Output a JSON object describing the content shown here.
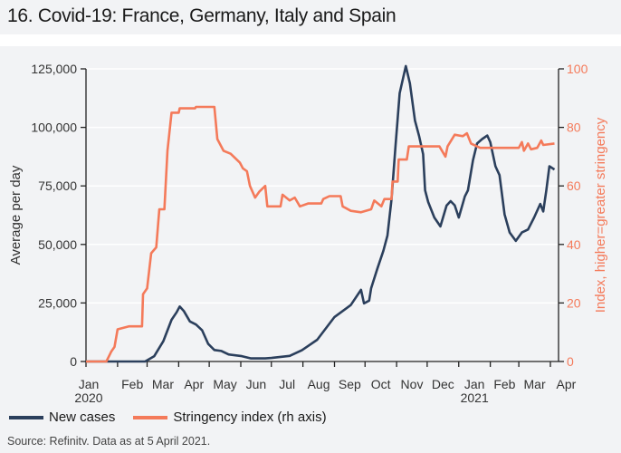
{
  "title": "16. Covid-19: France, Germany, Italy and Spain",
  "source": "Source: Refinitv. Data as at 5 April 2021.",
  "colors": {
    "cases": "#2b3f5c",
    "stringency": "#f47a5a",
    "background": "#f2f3f5",
    "grid": "#ffffff"
  },
  "chart_data": {
    "type": "line",
    "xlim": [
      "2020-01-01",
      "2021-04-09"
    ],
    "x_ticks": [
      {
        "label": "Jan",
        "year": "2020",
        "date": "2020-01-01"
      },
      {
        "label": "Feb",
        "date": "2020-02-01"
      },
      {
        "label": "Mar",
        "date": "2020-03-01"
      },
      {
        "label": "Apr",
        "date": "2020-04-01"
      },
      {
        "label": "May",
        "date": "2020-05-01"
      },
      {
        "label": "Jun",
        "date": "2020-06-01"
      },
      {
        "label": "Jul",
        "date": "2020-07-01"
      },
      {
        "label": "Aug",
        "date": "2020-08-01"
      },
      {
        "label": "Sep",
        "date": "2020-09-01"
      },
      {
        "label": "Oct",
        "date": "2020-10-01"
      },
      {
        "label": "Nov",
        "date": "2020-11-01"
      },
      {
        "label": "Dec",
        "date": "2020-12-01"
      },
      {
        "label": "Jan",
        "year": "2021",
        "date": "2021-01-01"
      },
      {
        "label": "Feb",
        "date": "2021-02-01"
      },
      {
        "label": "Mar",
        "date": "2021-03-01"
      },
      {
        "label": "Apr",
        "date": "2021-04-01"
      }
    ],
    "y_left": {
      "label": "Average per day",
      "ylim": [
        0,
        125000
      ],
      "ticks": [
        "0",
        "25,000",
        "50,000",
        "75,000",
        "100,000",
        "125,000"
      ],
      "tick_values": [
        0,
        25000,
        50000,
        75000,
        100000,
        125000
      ]
    },
    "y_right": {
      "label": "Index, higher=greater stringency",
      "ylim": [
        0,
        100
      ],
      "ticks": [
        "0",
        "20",
        "40",
        "60",
        "80",
        "100"
      ],
      "tick_values": [
        0,
        20,
        40,
        60,
        80,
        100
      ]
    },
    "grid": true,
    "legend_position": "bottom-left",
    "series": [
      {
        "name": "New cases",
        "axis": "left",
        "points": [
          [
            "2020-01-01",
            0
          ],
          [
            "2020-02-28",
            0
          ],
          [
            "2020-03-08",
            2300
          ],
          [
            "2020-03-17",
            8750
          ],
          [
            "2020-03-25",
            17800
          ],
          [
            "2020-03-30",
            21000
          ],
          [
            "2020-04-02",
            23500
          ],
          [
            "2020-04-06",
            21600
          ],
          [
            "2020-04-12",
            17100
          ],
          [
            "2020-04-18",
            15800
          ],
          [
            "2020-04-24",
            13300
          ],
          [
            "2020-04-30",
            7500
          ],
          [
            "2020-05-06",
            4900
          ],
          [
            "2020-05-13",
            4500
          ],
          [
            "2020-05-20",
            3000
          ],
          [
            "2020-06-02",
            2300
          ],
          [
            "2020-06-11",
            1300
          ],
          [
            "2020-06-25",
            1300
          ],
          [
            "2020-07-01",
            1500
          ],
          [
            "2020-07-19",
            2400
          ],
          [
            "2020-07-31",
            4800
          ],
          [
            "2020-08-15",
            9300
          ],
          [
            "2020-09-01",
            19000
          ],
          [
            "2020-09-17",
            24100
          ],
          [
            "2020-09-27",
            30600
          ],
          [
            "2020-09-30",
            24800
          ],
          [
            "2020-10-05",
            26000
          ],
          [
            "2020-10-07",
            31300
          ],
          [
            "2020-10-13",
            39600
          ],
          [
            "2020-10-19",
            47300
          ],
          [
            "2020-10-23",
            53800
          ],
          [
            "2020-10-27",
            69300
          ],
          [
            "2020-10-31",
            92500
          ],
          [
            "2020-11-04",
            114600
          ],
          [
            "2020-11-10",
            126200
          ],
          [
            "2020-11-14",
            118800
          ],
          [
            "2020-11-19",
            102900
          ],
          [
            "2020-11-23",
            96400
          ],
          [
            "2020-11-27",
            88600
          ],
          [
            "2020-11-29",
            73100
          ],
          [
            "2020-12-02",
            68100
          ],
          [
            "2020-12-08",
            61500
          ],
          [
            "2020-12-14",
            57700
          ],
          [
            "2020-12-20",
            66600
          ],
          [
            "2020-12-24",
            68500
          ],
          [
            "2020-12-28",
            66700
          ],
          [
            "2021-01-01",
            61500
          ],
          [
            "2021-01-07",
            70500
          ],
          [
            "2021-01-10",
            73100
          ],
          [
            "2021-01-15",
            86000
          ],
          [
            "2021-01-19",
            93100
          ],
          [
            "2021-01-24",
            95000
          ],
          [
            "2021-01-29",
            96500
          ],
          [
            "2021-02-01",
            93700
          ],
          [
            "2021-02-06",
            83400
          ],
          [
            "2021-02-10",
            79600
          ],
          [
            "2021-02-15",
            62800
          ],
          [
            "2021-02-20",
            55100
          ],
          [
            "2021-02-26",
            51500
          ],
          [
            "2021-03-04",
            55100
          ],
          [
            "2021-03-10",
            56400
          ],
          [
            "2021-03-16",
            61500
          ],
          [
            "2021-03-22",
            67300
          ],
          [
            "2021-03-25",
            64100
          ],
          [
            "2021-03-28",
            73100
          ],
          [
            "2021-03-31",
            83400
          ],
          [
            "2021-04-05",
            82000
          ]
        ]
      },
      {
        "name": "Stringency index (rh axis)",
        "axis": "right",
        "points": [
          [
            "2020-01-01",
            0
          ],
          [
            "2020-01-21",
            0
          ],
          [
            "2020-01-26",
            3.5
          ],
          [
            "2020-01-29",
            5
          ],
          [
            "2020-02-01",
            11
          ],
          [
            "2020-02-12",
            12
          ],
          [
            "2020-02-25",
            12
          ],
          [
            "2020-02-26",
            23
          ],
          [
            "2020-03-01",
            25
          ],
          [
            "2020-03-05",
            37
          ],
          [
            "2020-03-10",
            39
          ],
          [
            "2020-03-13",
            52
          ],
          [
            "2020-03-18",
            52
          ],
          [
            "2020-03-21",
            72
          ],
          [
            "2020-03-25",
            85
          ],
          [
            "2020-04-01",
            85
          ],
          [
            "2020-04-02",
            86.5
          ],
          [
            "2020-04-17",
            86.5
          ],
          [
            "2020-04-18",
            87
          ],
          [
            "2020-05-06",
            87
          ],
          [
            "2020-05-09",
            76
          ],
          [
            "2020-05-15",
            72
          ],
          [
            "2020-05-22",
            71
          ],
          [
            "2020-05-31",
            68
          ],
          [
            "2020-06-03",
            66
          ],
          [
            "2020-06-07",
            65
          ],
          [
            "2020-06-10",
            60
          ],
          [
            "2020-06-15",
            56
          ],
          [
            "2020-06-19",
            58
          ],
          [
            "2020-06-25",
            60
          ],
          [
            "2020-06-27",
            53
          ],
          [
            "2020-07-10",
            53
          ],
          [
            "2020-07-12",
            57
          ],
          [
            "2020-07-19",
            55
          ],
          [
            "2020-07-24",
            56
          ],
          [
            "2020-07-29",
            53
          ],
          [
            "2020-08-06",
            54
          ],
          [
            "2020-08-19",
            54
          ],
          [
            "2020-08-21",
            55.5
          ],
          [
            "2020-08-27",
            56.5
          ],
          [
            "2020-09-07",
            56.5
          ],
          [
            "2020-09-09",
            53
          ],
          [
            "2020-09-17",
            51.5
          ],
          [
            "2020-09-27",
            51
          ],
          [
            "2020-10-07",
            52
          ],
          [
            "2020-10-10",
            55
          ],
          [
            "2020-10-17",
            53
          ],
          [
            "2020-10-20",
            55.5
          ],
          [
            "2020-10-27",
            55.5
          ],
          [
            "2020-10-28",
            61.5
          ],
          [
            "2020-11-02",
            61.5
          ],
          [
            "2020-11-03",
            69
          ],
          [
            "2020-11-11",
            69
          ],
          [
            "2020-11-13",
            73.5
          ],
          [
            "2020-12-13",
            73.5
          ],
          [
            "2020-12-19",
            70
          ],
          [
            "2020-12-21",
            73.5
          ],
          [
            "2020-12-28",
            77.5
          ],
          [
            "2021-01-05",
            77
          ],
          [
            "2021-01-09",
            78
          ],
          [
            "2021-01-13",
            74.5
          ],
          [
            "2021-01-22",
            73
          ],
          [
            "2021-03-01",
            73
          ],
          [
            "2021-03-04",
            75
          ],
          [
            "2021-03-06",
            72
          ],
          [
            "2021-03-10",
            74.5
          ],
          [
            "2021-03-13",
            72.5
          ],
          [
            "2021-03-19",
            73
          ],
          [
            "2021-03-23",
            75.5
          ],
          [
            "2021-03-25",
            74
          ],
          [
            "2021-04-05",
            74.5
          ]
        ]
      }
    ]
  }
}
